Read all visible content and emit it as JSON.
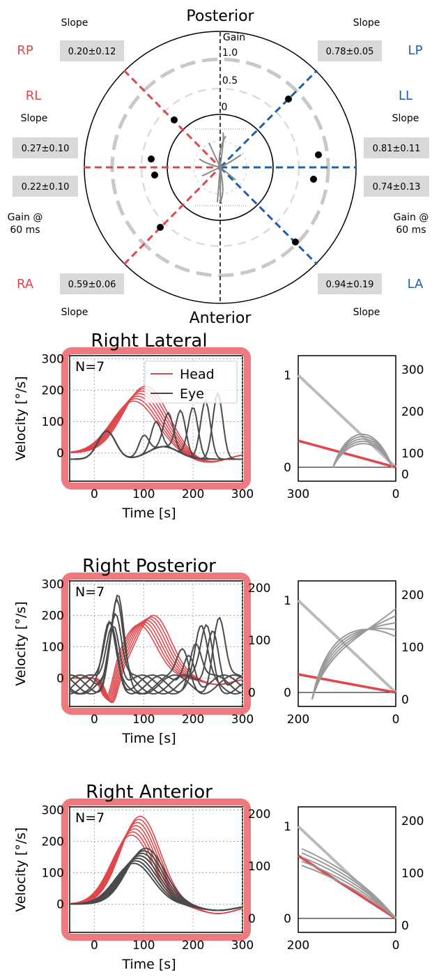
{
  "polar": {
    "top_label": "Posterior",
    "bottom_label": "Anterior",
    "gain_axis_label": "Gain",
    "gain_ticks": [
      "1.0",
      "0.5",
      "0"
    ],
    "canal_labels": {
      "RP": "RP",
      "RL": "RL",
      "RA": "RA",
      "LP": "LP",
      "LL": "LL",
      "LA": "LA"
    },
    "side_texts": {
      "slope_rp": "Slope",
      "slope_lp": "Slope",
      "slope_rl": "Slope",
      "slope_ll": "Slope",
      "slope_ra": "Slope",
      "slope_la": "Slope",
      "gain60_left": "Gain @\n60 ms",
      "gain60_right": "Gain @\n60 ms"
    },
    "value_boxes": {
      "RP": "0.20±0.12",
      "LP": "0.78±0.05",
      "RL_slope": "0.27±0.10",
      "LL_slope": "0.81±0.11",
      "RL_gain": "0.22±0.10",
      "LL_gain": "0.74±0.13",
      "RA": "0.59±0.06",
      "LA": "0.94±0.19"
    },
    "colors": {
      "right": "#e0474c",
      "left": "#1f5fa8"
    }
  },
  "chart_data": [
    {
      "type": "line",
      "title": "Right Lateral",
      "annotation": "N=7",
      "xlabel": "Time [s]",
      "ylabel": "Velocity [°/s]",
      "xlim": [
        -50,
        300
      ],
      "ylim": [
        -90,
        310
      ],
      "xticks": [
        "0",
        "100",
        "200",
        "300"
      ],
      "yticks": [
        "300",
        "200",
        "100",
        "0"
      ],
      "legend": [
        "Head",
        "Eye"
      ],
      "legend_position": "top-right",
      "series": [
        {
          "name": "Head",
          "color": "#e0474c",
          "peak_range": [
            160,
            220
          ],
          "peak_time": 85
        },
        {
          "name": "Eye",
          "color": "#4a4a4a",
          "peak_range": [
            80,
            300
          ]
        }
      ],
      "side_plot": {
        "x_ticks": [
          "300",
          "0"
        ],
        "left_ticks": [
          "1",
          "0"
        ],
        "right_ticks": [
          "300",
          "200",
          "100",
          "0"
        ]
      }
    },
    {
      "type": "line",
      "title": "Right Posterior",
      "annotation": "N=7",
      "xlabel": "Time [s]",
      "ylabel": "Velocity [°/s]",
      "xlim": [
        -50,
        300
      ],
      "ylim": [
        -90,
        310
      ],
      "xticks": [
        "0",
        "100",
        "200",
        "300"
      ],
      "yticks": [
        "300",
        "200",
        "100",
        "0"
      ],
      "right_yticks": [
        "200",
        "100",
        "0"
      ],
      "series": [
        {
          "name": "Head",
          "color": "#e0474c"
        },
        {
          "name": "Eye",
          "color": "#4a4a4a"
        }
      ],
      "side_plot": {
        "x_ticks": [
          "200",
          "0"
        ],
        "left_ticks": [
          "1",
          "0"
        ],
        "right_ticks": [
          "200",
          "100",
          "0"
        ]
      }
    },
    {
      "type": "line",
      "title": "Right Anterior",
      "annotation": "N=7",
      "xlabel": "Time [s]",
      "ylabel": "Velocity [°/s]",
      "xlim": [
        -50,
        300
      ],
      "ylim": [
        -90,
        310
      ],
      "xticks": [
        "0",
        "100",
        "200",
        "300"
      ],
      "yticks": [
        "300",
        "200",
        "100",
        "0"
      ],
      "right_yticks": [
        "200",
        "100",
        "0"
      ],
      "series": [
        {
          "name": "Head",
          "color": "#e0474c"
        },
        {
          "name": "Eye",
          "color": "#4a4a4a"
        }
      ],
      "side_plot": {
        "x_ticks": [
          "200",
          "0"
        ],
        "left_ticks": [
          "1",
          "0"
        ],
        "right_ticks": [
          "200",
          "100",
          "0"
        ]
      }
    }
  ]
}
